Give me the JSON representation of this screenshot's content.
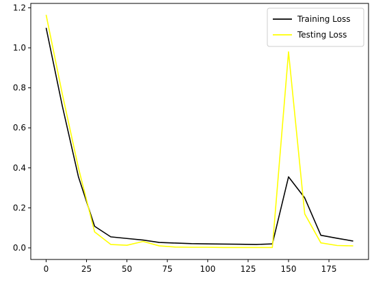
{
  "chart_data": {
    "type": "line",
    "title": "",
    "xlabel": "",
    "ylabel": "",
    "xlim": [
      -9.5,
      199.5
    ],
    "ylim": [
      -0.058,
      1.222
    ],
    "x_ticks": [
      0,
      25,
      50,
      75,
      100,
      125,
      150,
      175
    ],
    "x_tick_labels": [
      "0",
      "25",
      "50",
      "75",
      "100",
      "125",
      "150",
      "175"
    ],
    "y_ticks": [
      0.0,
      0.2,
      0.4,
      0.6,
      0.8,
      1.0,
      1.2
    ],
    "y_tick_labels": [
      "0.0",
      "0.2",
      "0.4",
      "0.6",
      "0.8",
      "1.0",
      "1.2"
    ],
    "grid": false,
    "legend_position": "top-right",
    "x": [
      0,
      10,
      20,
      30,
      40,
      50,
      60,
      70,
      80,
      90,
      100,
      110,
      120,
      130,
      140,
      150,
      160,
      170,
      180,
      190
    ],
    "series": [
      {
        "name": "Training Loss",
        "color": "#000000",
        "values": [
          1.1,
          0.71,
          0.355,
          0.108,
          0.055,
          0.047,
          0.039,
          0.027,
          0.024,
          0.021,
          0.02,
          0.019,
          0.018,
          0.017,
          0.02,
          0.355,
          0.25,
          0.063,
          0.048,
          0.034
        ]
      },
      {
        "name": "Testing Loss",
        "color": "#ffff00",
        "values": [
          1.165,
          0.77,
          0.4,
          0.08,
          0.017,
          0.013,
          0.032,
          0.01,
          0.004,
          0.003,
          0.003,
          0.002,
          0.002,
          0.002,
          0.002,
          0.98,
          0.17,
          0.025,
          0.012,
          0.01
        ]
      }
    ]
  }
}
